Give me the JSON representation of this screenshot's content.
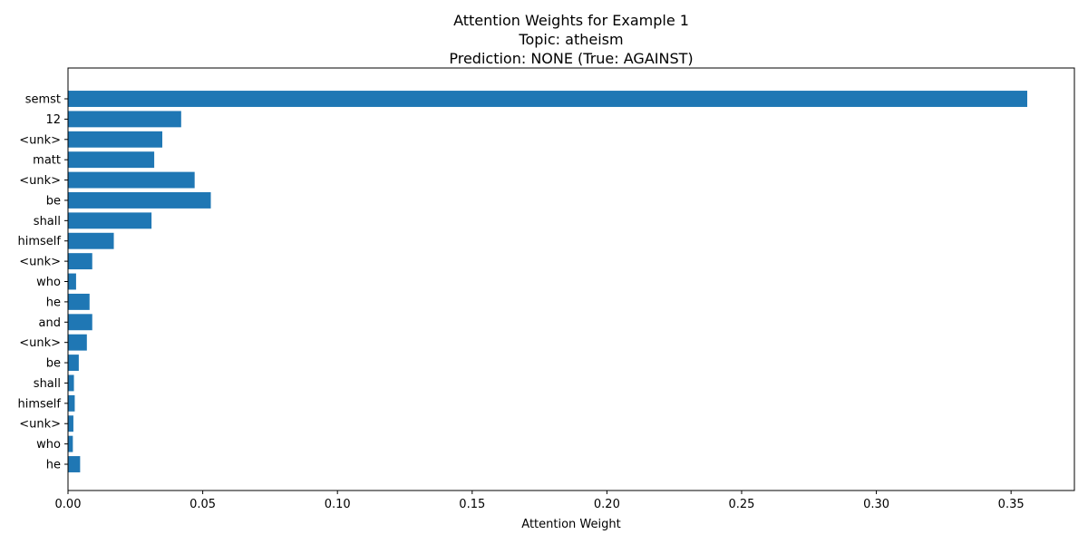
{
  "chart_data": {
    "type": "bar",
    "orientation": "horizontal",
    "title_lines": [
      "Attention Weights for Example 1",
      "Topic: atheism",
      "Prediction: NONE (True: AGAINST)"
    ],
    "xlabel": "Attention Weight",
    "ylabel": "",
    "xlim": [
      0,
      0.3735
    ],
    "x_ticks": [
      0.0,
      0.05,
      0.1,
      0.15,
      0.2,
      0.25,
      0.3,
      0.35
    ],
    "x_tick_labels": [
      "0.00",
      "0.05",
      "0.10",
      "0.15",
      "0.20",
      "0.25",
      "0.30",
      "0.35"
    ],
    "categories": [
      "semst",
      "12",
      "<unk>",
      "matt",
      "<unk>",
      "be",
      "shall",
      "himself",
      "<unk>",
      "who",
      "he",
      "and",
      "<unk>",
      "be",
      "shall",
      "himself",
      "<unk>",
      "who",
      "he"
    ],
    "values": [
      0.356,
      0.042,
      0.035,
      0.032,
      0.047,
      0.053,
      0.031,
      0.017,
      0.009,
      0.003,
      0.008,
      0.009,
      0.007,
      0.004,
      0.0022,
      0.0025,
      0.002,
      0.0018,
      0.0045
    ],
    "bar_color": "#1f77b4",
    "grid": false,
    "legend": "none"
  }
}
